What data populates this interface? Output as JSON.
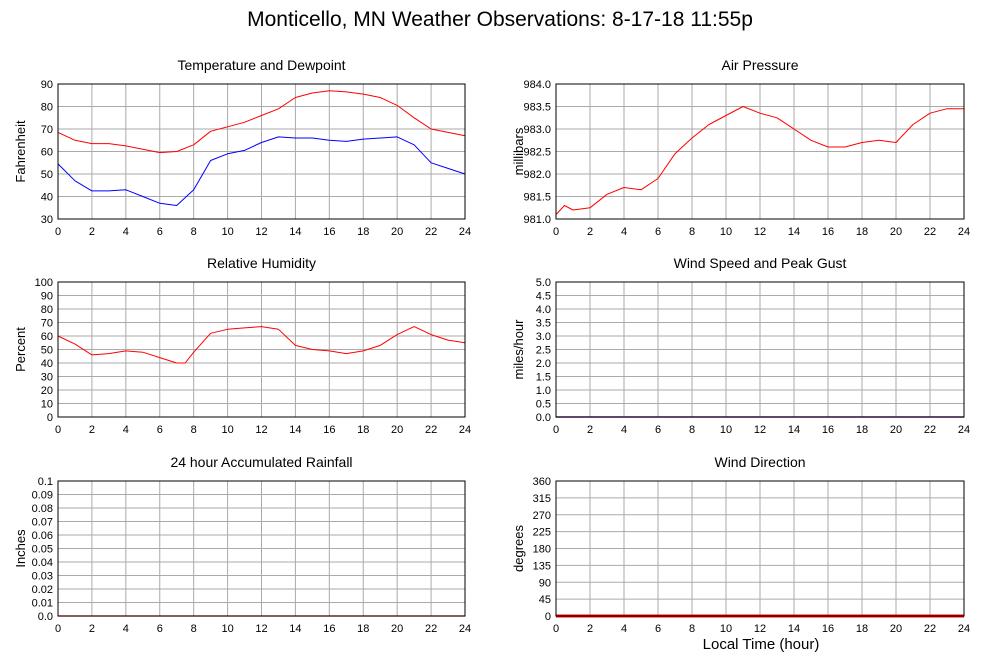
{
  "title": "Monticello, MN Weather Observations: 8-17-18 11:55p",
  "xaxis_title": "Local Time (hour)",
  "colors": {
    "red": "#ff0000",
    "blue": "#0000ff",
    "grid": "#aaaaaa",
    "frame": "#000000"
  },
  "chart_data": [
    {
      "type": "line",
      "title": "Temperature and Dewpoint",
      "ylabel": "Fahrenheit",
      "xlim": [
        0,
        24
      ],
      "ylim": [
        30,
        90
      ],
      "xticks": [
        "0",
        "2",
        "4",
        "6",
        "8",
        "10",
        "12",
        "14",
        "16",
        "18",
        "20",
        "22",
        "24"
      ],
      "yticks": [
        "30",
        "40",
        "50",
        "60",
        "70",
        "80",
        "90"
      ],
      "grid": true,
      "series": [
        {
          "color": "#ff0000",
          "x": [
            0,
            1,
            2,
            3,
            4,
            5,
            6,
            7,
            8,
            9,
            10,
            11,
            12,
            13,
            14,
            15,
            16,
            17,
            18,
            19,
            20,
            21,
            22,
            23,
            24
          ],
          "y": [
            68.5,
            65,
            63.5,
            63.5,
            62.5,
            61,
            59.5,
            60,
            63,
            69,
            71,
            73,
            76,
            79,
            84,
            86,
            87,
            86.5,
            85.5,
            84,
            80.5,
            75,
            70,
            68.5,
            67
          ]
        },
        {
          "color": "#0000ff",
          "x": [
            0,
            1,
            2,
            3,
            4,
            5,
            6,
            7,
            8,
            9,
            10,
            11,
            12,
            13,
            14,
            15,
            16,
            17,
            18,
            19,
            20,
            21,
            22,
            23,
            24
          ],
          "y": [
            54.5,
            47,
            42.5,
            42.5,
            43,
            40,
            37,
            36,
            43,
            56,
            59,
            60.5,
            64,
            66.5,
            66,
            66,
            65,
            64.5,
            65.5,
            66,
            66.5,
            63,
            55,
            52.5,
            50
          ]
        }
      ]
    },
    {
      "type": "line",
      "title": "Air Pressure",
      "ylabel": "millibars",
      "xlim": [
        0,
        24
      ],
      "ylim": [
        981.0,
        984.0
      ],
      "xticks": [
        "0",
        "2",
        "4",
        "6",
        "8",
        "10",
        "12",
        "14",
        "16",
        "18",
        "20",
        "22",
        "24"
      ],
      "yticks": [
        "981.0",
        "981.5",
        "982.0",
        "982.5",
        "983.0",
        "983.5",
        "984.0"
      ],
      "grid": true,
      "series": [
        {
          "color": "#ff0000",
          "x": [
            0,
            0.5,
            1,
            2,
            3,
            4,
            5,
            6,
            7,
            8,
            9,
            10,
            11,
            12,
            13,
            14,
            15,
            16,
            17,
            18,
            19,
            20,
            21,
            22,
            23,
            24
          ],
          "y": [
            981.1,
            981.3,
            981.2,
            981.25,
            981.55,
            981.7,
            981.65,
            981.9,
            982.45,
            982.8,
            983.1,
            983.3,
            983.5,
            983.35,
            983.25,
            983.0,
            982.75,
            982.6,
            982.6,
            982.7,
            982.75,
            982.7,
            983.1,
            983.35,
            983.45,
            983.45
          ]
        }
      ]
    },
    {
      "type": "line",
      "title": "Relative Humidity",
      "ylabel": "Percent",
      "xlim": [
        0,
        24
      ],
      "ylim": [
        0,
        100
      ],
      "xticks": [
        "0",
        "2",
        "4",
        "6",
        "8",
        "10",
        "12",
        "14",
        "16",
        "18",
        "20",
        "22",
        "24"
      ],
      "yticks": [
        "0",
        "10",
        "20",
        "30",
        "40",
        "50",
        "60",
        "70",
        "80",
        "90",
        "100"
      ],
      "grid": true,
      "series": [
        {
          "color": "#ff0000",
          "x": [
            0,
            1,
            2,
            3,
            4,
            5,
            6,
            7,
            7.5,
            8,
            9,
            10,
            11,
            12,
            13,
            14,
            15,
            16,
            17,
            18,
            19,
            20,
            21,
            22,
            23,
            24
          ],
          "y": [
            60,
            54,
            46,
            47,
            49,
            48,
            44,
            40,
            40,
            48,
            62,
            65,
            66,
            67,
            65,
            53,
            50,
            49,
            47,
            49,
            53,
            61,
            67,
            61,
            57,
            55
          ]
        }
      ]
    },
    {
      "type": "line",
      "title": "Wind Speed and Peak Gust",
      "ylabel": "miles/hour",
      "xlim": [
        0,
        24
      ],
      "ylim": [
        0,
        5.0
      ],
      "xticks": [
        "0",
        "2",
        "4",
        "6",
        "8",
        "10",
        "12",
        "14",
        "16",
        "18",
        "20",
        "22",
        "24"
      ],
      "yticks": [
        "0.0",
        "0.5",
        "1.0",
        "1.5",
        "2.0",
        "2.5",
        "3.0",
        "3.5",
        "4.0",
        "4.5",
        "5.0"
      ],
      "grid": true,
      "series": [
        {
          "color": "#ff0000",
          "x": [
            0,
            24
          ],
          "y": [
            0,
            0
          ]
        },
        {
          "color": "#0000ff",
          "x": [
            0,
            24
          ],
          "y": [
            0,
            0
          ]
        }
      ]
    },
    {
      "type": "line",
      "title": "24 hour Accumulated Rainfall",
      "ylabel": "Inches",
      "xlim": [
        0,
        24
      ],
      "ylim": [
        0,
        0.1
      ],
      "xticks": [
        "0",
        "2",
        "4",
        "6",
        "8",
        "10",
        "12",
        "14",
        "16",
        "18",
        "20",
        "22",
        "24"
      ],
      "yticks": [
        "0.0",
        "0.01",
        "0.02",
        "0.03",
        "0.04",
        "0.05",
        "0.06",
        "0.07",
        "0.08",
        "0.09",
        "0.1"
      ],
      "grid": true,
      "series": [
        {
          "color": "#ff0000",
          "x": [
            0,
            24
          ],
          "y": [
            0,
            0
          ]
        }
      ]
    },
    {
      "type": "line",
      "title": "Wind Direction",
      "ylabel": "degrees",
      "xlim": [
        0,
        24
      ],
      "ylim": [
        0,
        360
      ],
      "xticks": [
        "0",
        "2",
        "4",
        "6",
        "8",
        "10",
        "12",
        "14",
        "16",
        "18",
        "20",
        "22",
        "24"
      ],
      "yticks": [
        "0",
        "45",
        "90",
        "135",
        "180",
        "225",
        "270",
        "315",
        "360"
      ],
      "grid": true,
      "series": [
        {
          "color": "#ff0000",
          "x": [
            0,
            24
          ],
          "y": [
            0,
            0
          ]
        }
      ]
    }
  ]
}
